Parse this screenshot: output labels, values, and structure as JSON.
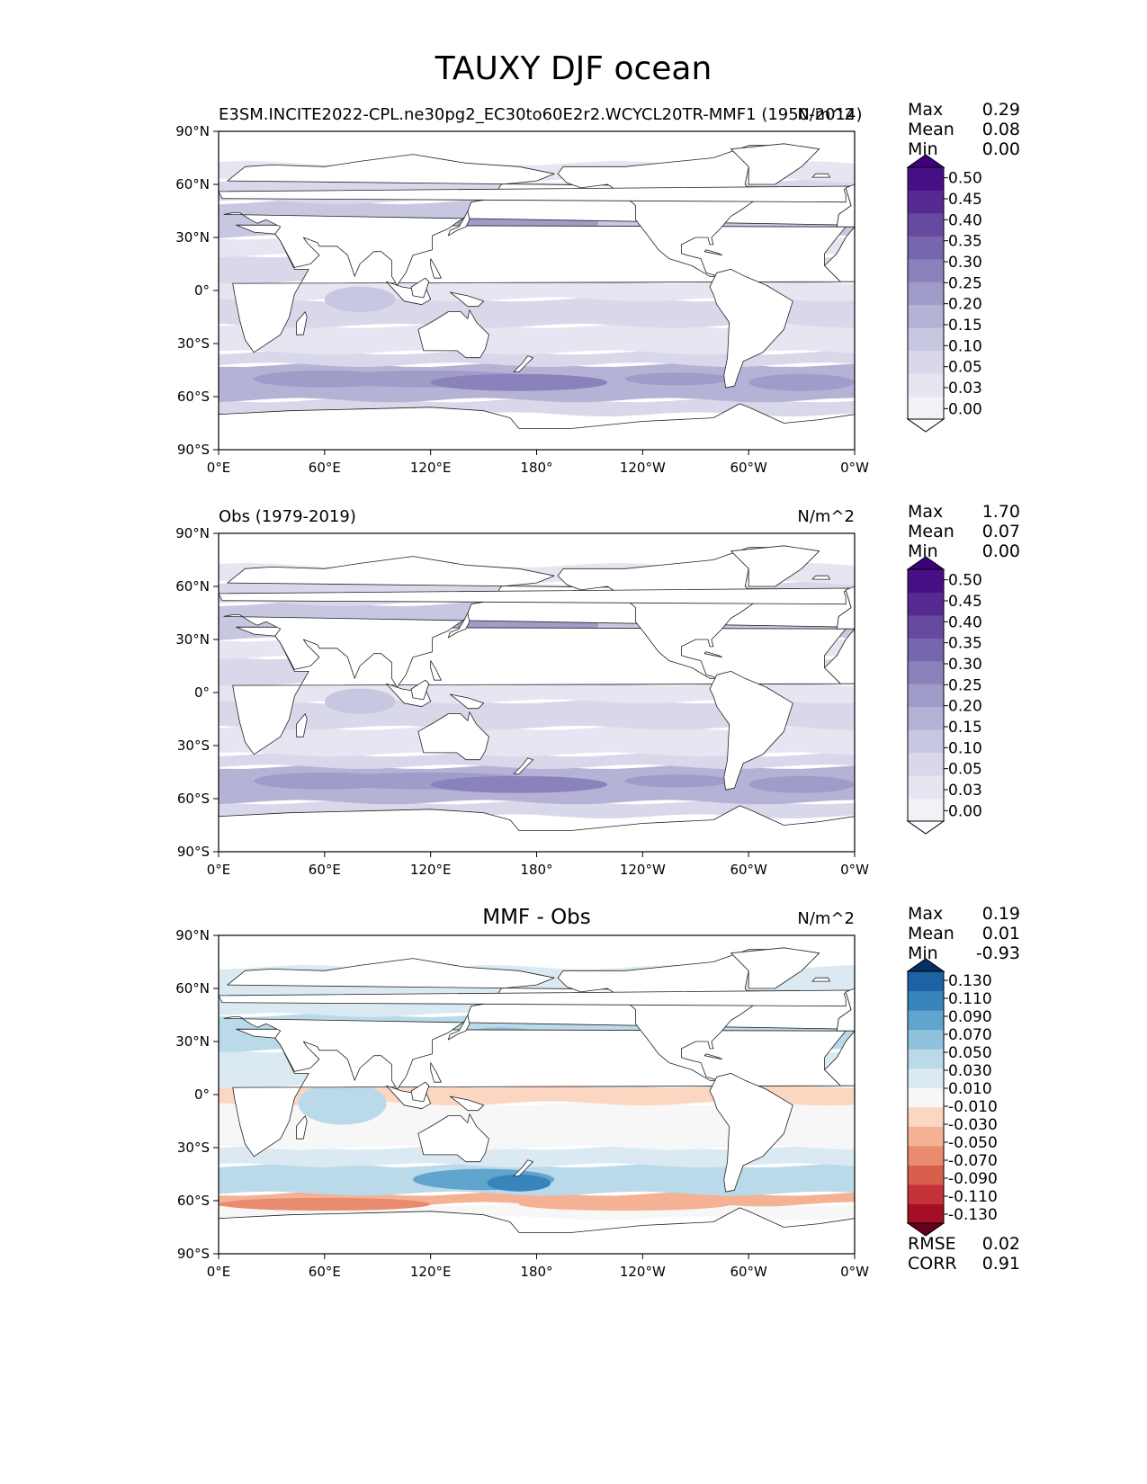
{
  "figure": {
    "title": "TAUXY DJF ocean"
  },
  "chart_data": [
    {
      "type": "heatmap",
      "title_left": "E3SM.INCITE2022-CPL.ne30pg2_EC30to60E2r2.WCYCL20TR-MMF1 (1950-2014)",
      "title_center": "",
      "title_right": "N/m^2",
      "stats": [
        {
          "label": "Max",
          "value": "0.29"
        },
        {
          "label": "Mean",
          "value": "0.08"
        },
        {
          "label": "Min",
          "value": "0.00"
        }
      ],
      "x_ticks": [
        "0°E",
        "60°E",
        "120°E",
        "180°",
        "120°W",
        "60°W",
        "0°W"
      ],
      "y_ticks": [
        "90°N",
        "60°N",
        "30°N",
        "0°",
        "30°S",
        "60°S",
        "90°S"
      ],
      "xlim": [
        0,
        360
      ],
      "ylim": [
        -90,
        90
      ],
      "colorbar": {
        "cmap": "Purples",
        "levels": [
          "0.00",
          "0.03",
          "0.05",
          "0.10",
          "0.15",
          "0.20",
          "0.25",
          "0.30",
          "0.35",
          "0.40",
          "0.45",
          "0.50"
        ],
        "colors": [
          "#fcfbfd",
          "#f3f1f7",
          "#e7e5f1",
          "#d9d8ea",
          "#c8c7e1",
          "#b4b3d6",
          "#a09cca",
          "#8b82bb",
          "#7766ad",
          "#664a9f",
          "#562a90",
          "#481087",
          "#3f007d"
        ],
        "extend": "both"
      },
      "field": {
        "kind": "model",
        "bands": [
          {
            "lat": [
              -70,
              -62
            ],
            "level": 3
          },
          {
            "lat": [
              -62,
              -42
            ],
            "level": 5
          },
          {
            "lat": [
              -42,
              -35
            ],
            "level": 3
          },
          {
            "lat": [
              -35,
              -20
            ],
            "level": 2
          },
          {
            "lat": [
              -20,
              -5
            ],
            "level": 3
          },
          {
            "lat": [
              -5,
              5
            ],
            "level": 2
          },
          {
            "lat": [
              5,
              20
            ],
            "level": 3
          },
          {
            "lat": [
              20,
              30
            ],
            "level": 2
          },
          {
            "lat": [
              30,
              50
            ],
            "level": 4
          },
          {
            "lat": [
              50,
              62
            ],
            "level": 3
          },
          {
            "lat": [
              62,
              72
            ],
            "level": 2
          }
        ]
      }
    },
    {
      "type": "heatmap",
      "title_left": "Obs (1979-2019)",
      "title_center": "",
      "title_right": "N/m^2",
      "stats": [
        {
          "label": "Max",
          "value": "1.70"
        },
        {
          "label": "Mean",
          "value": "0.07"
        },
        {
          "label": "Min",
          "value": "0.00"
        }
      ],
      "x_ticks": [
        "0°E",
        "60°E",
        "120°E",
        "180°",
        "120°W",
        "60°W",
        "0°W"
      ],
      "y_ticks": [
        "90°N",
        "60°N",
        "30°N",
        "0°",
        "30°S",
        "60°S",
        "90°S"
      ],
      "xlim": [
        0,
        360
      ],
      "ylim": [
        -90,
        90
      ],
      "colorbar": {
        "cmap": "Purples",
        "levels": [
          "0.00",
          "0.03",
          "0.05",
          "0.10",
          "0.15",
          "0.20",
          "0.25",
          "0.30",
          "0.35",
          "0.40",
          "0.45",
          "0.50"
        ],
        "colors": [
          "#fcfbfd",
          "#f3f1f7",
          "#e7e5f1",
          "#d9d8ea",
          "#c8c7e1",
          "#b4b3d6",
          "#a09cca",
          "#8b82bb",
          "#7766ad",
          "#664a9f",
          "#562a90",
          "#481087",
          "#3f007d"
        ],
        "extend": "both"
      },
      "field": {
        "kind": "obs",
        "bands": [
          {
            "lat": [
              -70,
              -62
            ],
            "level": 3
          },
          {
            "lat": [
              -62,
              -42
            ],
            "level": 5
          },
          {
            "lat": [
              -42,
              -35
            ],
            "level": 3
          },
          {
            "lat": [
              -35,
              -20
            ],
            "level": 2
          },
          {
            "lat": [
              -20,
              -5
            ],
            "level": 3
          },
          {
            "lat": [
              -5,
              5
            ],
            "level": 2
          },
          {
            "lat": [
              5,
              20
            ],
            "level": 3
          },
          {
            "lat": [
              20,
              30
            ],
            "level": 2
          },
          {
            "lat": [
              30,
              50
            ],
            "level": 4
          },
          {
            "lat": [
              50,
              62
            ],
            "level": 3
          },
          {
            "lat": [
              62,
              72
            ],
            "level": 2
          }
        ]
      }
    },
    {
      "type": "heatmap",
      "title_left": "",
      "title_center": "MMF - Obs",
      "title_right": "N/m^2",
      "stats": [
        {
          "label": "Max",
          "value": "0.19"
        },
        {
          "label": "Mean",
          "value": "0.01"
        },
        {
          "label": "Min",
          "value": "-0.93"
        }
      ],
      "bottom_stats": [
        {
          "label": "RMSE",
          "value": "0.02"
        },
        {
          "label": "CORR",
          "value": "0.91"
        }
      ],
      "x_ticks": [
        "0°E",
        "60°E",
        "120°E",
        "180°",
        "120°W",
        "60°W",
        "0°W"
      ],
      "y_ticks": [
        "90°N",
        "60°N",
        "30°N",
        "0°",
        "30°S",
        "60°S",
        "90°S"
      ],
      "xlim": [
        0,
        360
      ],
      "ylim": [
        -90,
        90
      ],
      "colorbar": {
        "cmap": "RdBu",
        "levels": [
          "-0.130",
          "-0.110",
          "-0.090",
          "-0.070",
          "-0.050",
          "-0.030",
          "-0.010",
          "0.010",
          "0.030",
          "0.050",
          "0.070",
          "0.090",
          "0.110",
          "0.130"
        ],
        "colors": [
          "#67001f",
          "#a50f25",
          "#c6323a",
          "#d75f4c",
          "#e98b6e",
          "#f5b194",
          "#fbd6c1",
          "#f7f7f7",
          "#dbeaf2",
          "#bad9e9",
          "#8ec2dd",
          "#5fa5cd",
          "#3885bc",
          "#1d63a3",
          "#053061"
        ],
        "extend": "both"
      },
      "field": {
        "kind": "diff",
        "bands": [
          {
            "lat": [
              -70,
              -62
            ],
            "level": 7
          },
          {
            "lat": [
              -62,
              -56
            ],
            "level": 5
          },
          {
            "lat": [
              -56,
              -40
            ],
            "level": 9
          },
          {
            "lat": [
              -40,
              -30
            ],
            "level": 8
          },
          {
            "lat": [
              -30,
              -5
            ],
            "level": 7
          },
          {
            "lat": [
              -5,
              5
            ],
            "level": 6
          },
          {
            "lat": [
              5,
              25
            ],
            "level": 8
          },
          {
            "lat": [
              25,
              45
            ],
            "level": 9
          },
          {
            "lat": [
              45,
              72
            ],
            "level": 8
          }
        ]
      }
    }
  ]
}
